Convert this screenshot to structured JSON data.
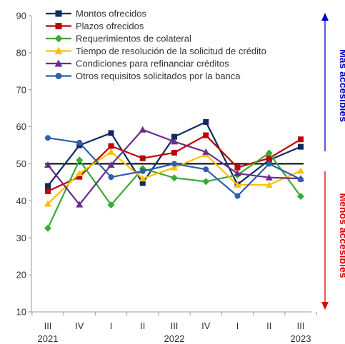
{
  "chart_data": {
    "type": "line",
    "x_ticks": [
      "III",
      "IV",
      "I",
      "II",
      "III",
      "IV",
      "I",
      "II",
      "III"
    ],
    "year_labels": [
      {
        "at": 0,
        "label": "2021"
      },
      {
        "at": 4,
        "label": "2022"
      },
      {
        "at": 8,
        "label": "2023"
      }
    ],
    "ylim": [
      10,
      90
    ],
    "y_ticks": [
      10,
      20,
      30,
      40,
      50,
      60,
      70,
      80,
      90
    ],
    "reference_line": 50,
    "grid": false,
    "legend_position": "top-left",
    "series": [
      {
        "name": "Montos ofrecidos",
        "color": "#0d2a63",
        "marker": "square",
        "values": [
          44.0,
          55.0,
          58.3,
          44.8,
          57.3,
          61.3,
          44.4,
          51.0,
          54.6
        ]
      },
      {
        "name": "Plazos ofrecidos",
        "color": "#c00000",
        "marker": "square",
        "values": [
          42.6,
          46.5,
          54.8,
          51.5,
          53.0,
          57.7,
          49.0,
          51.5,
          56.6
        ]
      },
      {
        "name": "Requerimientos de colateral",
        "color": "#3aaa35",
        "marker": "diamond",
        "values": [
          32.6,
          51.0,
          38.9,
          48.7,
          46.2,
          45.2,
          47.0,
          52.9,
          41.2
        ]
      },
      {
        "name": "Tiempo de resolución de la solicitud de crédito",
        "color": "#ffc000",
        "marker": "triangle",
        "values": [
          39.2,
          47.4,
          53.2,
          46.0,
          49.0,
          52.5,
          44.3,
          44.3,
          48.1
        ]
      },
      {
        "name": "Condiciones para refinanciar créditos",
        "color": "#6b2d8a",
        "marker": "triangle",
        "values": [
          49.7,
          39.0,
          49.7,
          59.2,
          56.0,
          53.2,
          47.4,
          46.3,
          46.0
        ]
      },
      {
        "name": "Otros requisitos solicitados por la banca",
        "color": "#2e5fa8",
        "marker": "circle",
        "values": [
          57.0,
          55.7,
          46.4,
          48.0,
          50.0,
          48.5,
          41.3,
          50.0,
          45.8
        ]
      }
    ],
    "annotations": {
      "upper": {
        "text": "Más accesibles",
        "color": "#0000cc"
      },
      "lower": {
        "text": "Menos accesibles",
        "color": "#e00000"
      }
    }
  }
}
